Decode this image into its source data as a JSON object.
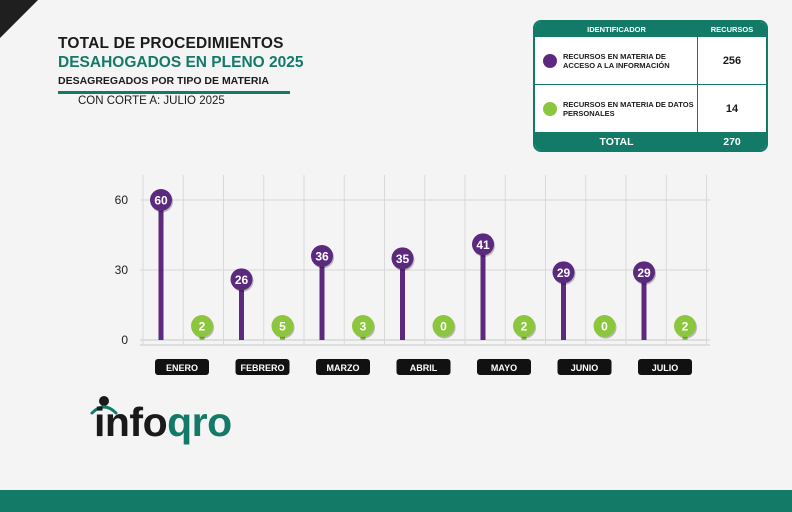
{
  "header": {
    "title_line1": "TOTAL DE PROCEDIMIENTOS",
    "title_line2": "DESAHOGADOS EN PLENO 2025",
    "title_line3": "DESAGREGADOS POR TIPO DE MATERIA",
    "cutoff": "CON CORTE A: JULIO 2025"
  },
  "legend": {
    "col_id": "IDENTIFICADOR",
    "col_value": "RECURSOS",
    "rows": [
      {
        "label": "RECURSOS EN MATERIA DE ACCESO A LA INFORMACIÓN",
        "value": "256",
        "color": "#5b2a7e"
      },
      {
        "label": "RECURSOS EN MATERIA DE DATOS PERSONALES",
        "value": "14",
        "color": "#8cc63f"
      }
    ],
    "total_label": "TOTAL",
    "total_value": "270"
  },
  "logo": {
    "text_main": "info",
    "text_accent": "qro"
  },
  "colors": {
    "purple": "#5b2a7e",
    "green": "#8cc63f",
    "brand": "#137a67"
  },
  "chart_data": {
    "type": "lollipop",
    "categories": [
      "ENERO",
      "FEBRERO",
      "MARZO",
      "ABRIL",
      "MAYO",
      "JUNIO",
      "JULIO"
    ],
    "series": [
      {
        "values": [
          60,
          26,
          36,
          35,
          41,
          29,
          29
        ],
        "color": "#5b2a7e"
      },
      {
        "values": [
          2,
          5,
          3,
          0,
          2,
          0,
          2
        ],
        "color": "#8cc63f"
      }
    ],
    "yticks": [
      0,
      30,
      60
    ],
    "ylim": [
      0,
      60
    ],
    "grid": true
  }
}
